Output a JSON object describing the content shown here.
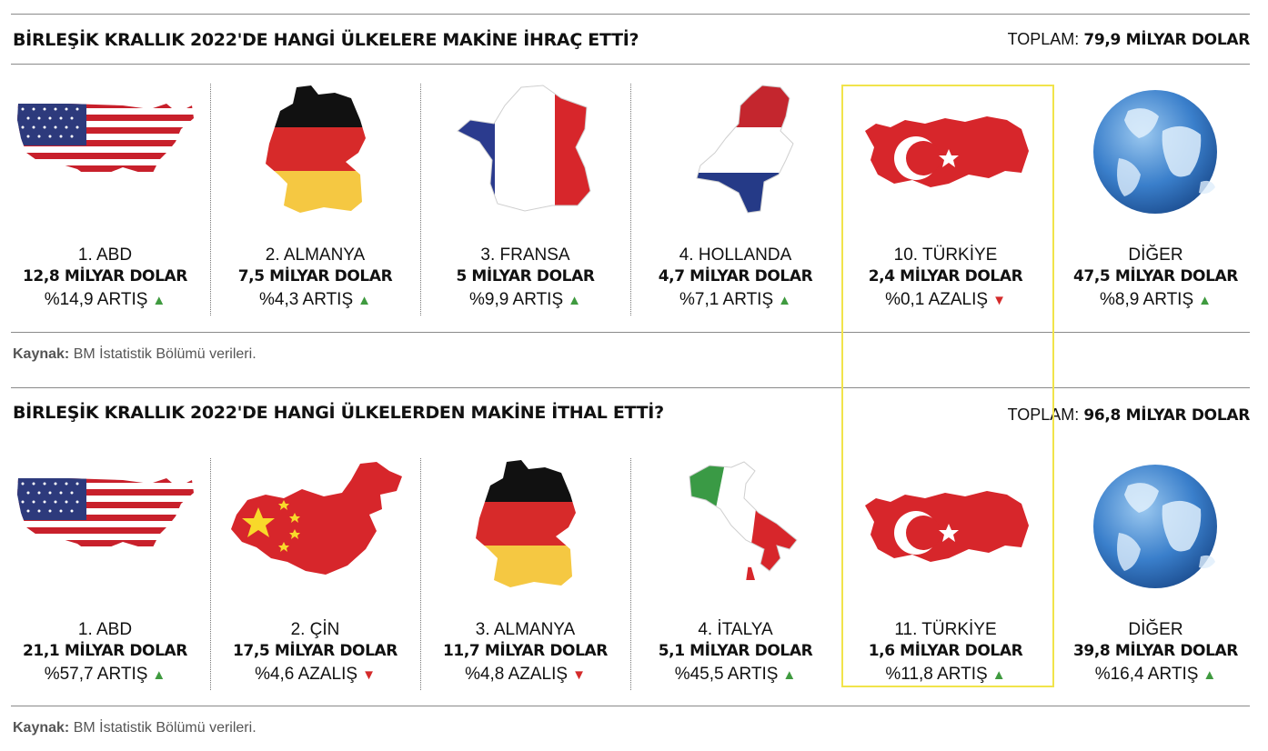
{
  "export": {
    "title": "BİRLEŞİK KRALLIK 2022'DE HANGİ ÜLKELERE MAKİNE İHRAÇ ETTİ?",
    "total_label": "TOPLAM:",
    "total_value": "79,9 MİLYAR DOLAR",
    "items": [
      {
        "rank": "1. ABD",
        "value": "12,8 MİLYAR DOLAR",
        "change": "%14,9 ARTIŞ",
        "arrow": "▲",
        "direction": "up",
        "icon": "usa-flag-map-icon"
      },
      {
        "rank": "2. ALMANYA",
        "value": "7,5 MİLYAR DOLAR",
        "change": "%4,3 ARTIŞ",
        "arrow": "▲",
        "direction": "up",
        "icon": "germany-flag-map-icon"
      },
      {
        "rank": "3. FRANSA",
        "value": "5 MİLYAR DOLAR",
        "change": "%9,9 ARTIŞ",
        "arrow": "▲",
        "direction": "up",
        "icon": "france-flag-map-icon"
      },
      {
        "rank": "4. HOLLANDA",
        "value": "4,7 MİLYAR DOLAR",
        "change": "%7,1 ARTIŞ",
        "arrow": "▲",
        "direction": "up",
        "icon": "netherlands-flag-map-icon"
      },
      {
        "rank": "10. TÜRKİYE",
        "value": "2,4 MİLYAR DOLAR",
        "change": "%0,1 AZALIŞ",
        "arrow": "▼",
        "direction": "down",
        "icon": "turkey-flag-map-icon"
      },
      {
        "rank": "DİĞER",
        "value": "47,5 MİLYAR DOLAR",
        "change": "%8,9 ARTIŞ",
        "arrow": "▲",
        "direction": "up",
        "icon": "globe-icon"
      }
    ],
    "source_label": "Kaynak:",
    "source_text": " BM İstatistik Bölümü verileri."
  },
  "import": {
    "title": "BİRLEŞİK KRALLIK 2022'DE HANGİ ÜLKELERDEN MAKİNE İTHAL ETTİ?",
    "total_label": "TOPLAM:",
    "total_value": "96,8 MİLYAR DOLAR",
    "items": [
      {
        "rank": "1. ABD",
        "value": "21,1 MİLYAR DOLAR",
        "change": "%57,7 ARTIŞ",
        "arrow": "▲",
        "direction": "up",
        "icon": "usa-flag-map-icon"
      },
      {
        "rank": "2. ÇİN",
        "value": "17,5 MİLYAR DOLAR",
        "change": "%4,6 AZALIŞ",
        "arrow": "▼",
        "direction": "down",
        "icon": "china-flag-map-icon"
      },
      {
        "rank": "3. ALMANYA",
        "value": "11,7 MİLYAR DOLAR",
        "change": "%4,8 AZALIŞ",
        "arrow": "▼",
        "direction": "down",
        "icon": "germany-flag-map-icon"
      },
      {
        "rank": "4. İTALYA",
        "value": "5,1 MİLYAR DOLAR",
        "change": "%45,5 ARTIŞ",
        "arrow": "▲",
        "direction": "up",
        "icon": "italy-flag-map-icon"
      },
      {
        "rank": "11. TÜRKİYE",
        "value": "1,6 MİLYAR DOLAR",
        "change": "%11,8 ARTIŞ",
        "arrow": "▲",
        "direction": "up",
        "icon": "turkey-flag-map-icon"
      },
      {
        "rank": "DİĞER",
        "value": "39,8 MİLYAR DOLAR",
        "change": "%16,4 ARTIŞ",
        "arrow": "▲",
        "direction": "up",
        "icon": "globe-icon"
      }
    ],
    "source_label": "Kaynak:",
    "source_text": " BM İstatistik Bölümü verileri."
  },
  "colors": {
    "up": "#3f9a3f",
    "down": "#d42a2a",
    "highlight": "#f1e44b",
    "turkey_red": "#d7262b"
  }
}
